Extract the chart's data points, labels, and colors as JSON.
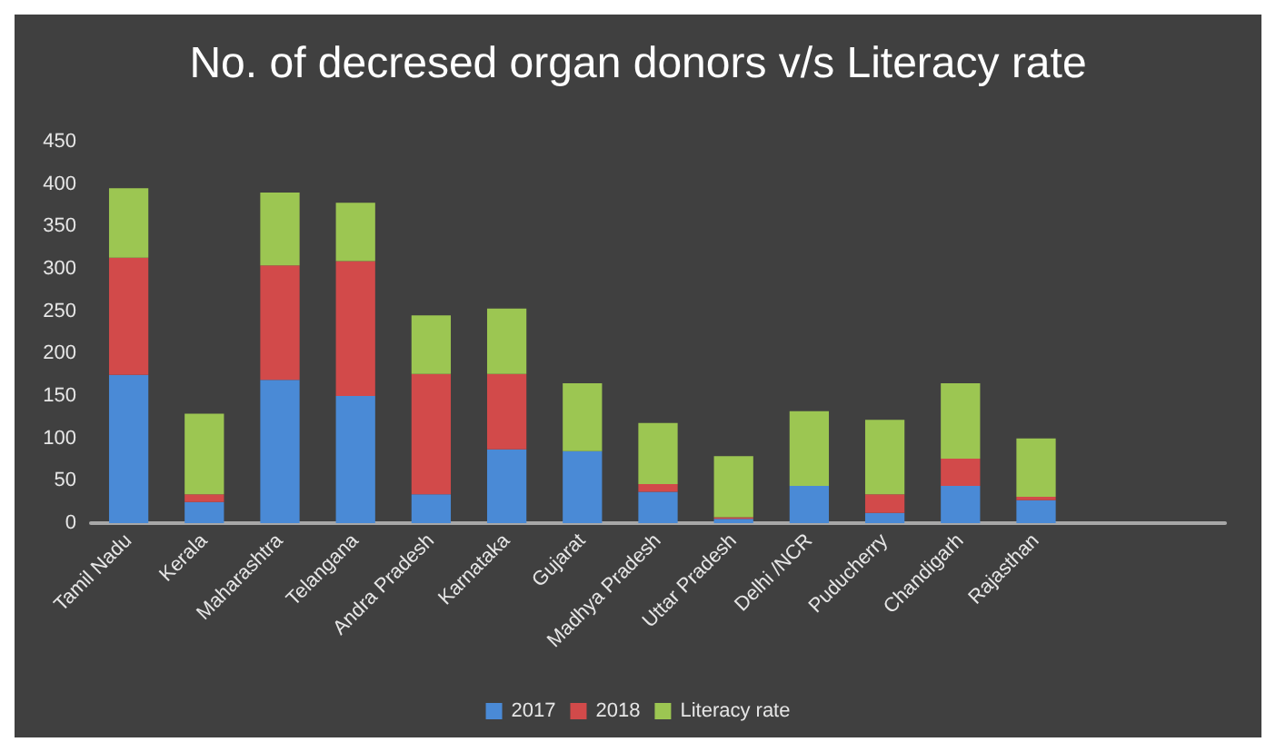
{
  "chart_data": {
    "type": "bar",
    "title": "No. of decresed organ donors v/s Literacy rate",
    "stacked": true,
    "categories": [
      "Tamil Nadu",
      "Kerala",
      "Maharashtra",
      "Telangana",
      "Andra Pradesh",
      "Karnataka",
      "Gujarat",
      "Madhya Pradesh",
      "Uttar Pradesh",
      "Delhi /NCR",
      "Puducherry",
      "Chandigarh",
      "Rajasthan",
      null,
      null
    ],
    "series": [
      {
        "name": "2017",
        "color": "#4a8ad6",
        "values": [
          175,
          25,
          169,
          150,
          34,
          87,
          85,
          37,
          5,
          44,
          12,
          44,
          27,
          null,
          null
        ]
      },
      {
        "name": "2018",
        "color": "#d24a4a",
        "values": [
          138,
          9,
          135,
          159,
          142,
          89,
          0,
          9,
          2,
          0,
          22,
          32,
          4,
          null,
          null
        ]
      },
      {
        "name": "Literacy rate",
        "color": "#9cc652",
        "values": [
          82,
          95,
          86,
          69,
          69,
          77,
          80,
          72,
          72,
          88,
          88,
          89,
          69,
          null,
          null
        ]
      }
    ],
    "ylim": [
      0,
      450
    ],
    "yticks": [
      0,
      50,
      100,
      150,
      200,
      250,
      300,
      350,
      400,
      450
    ],
    "grid": false,
    "legend": "bottom"
  }
}
